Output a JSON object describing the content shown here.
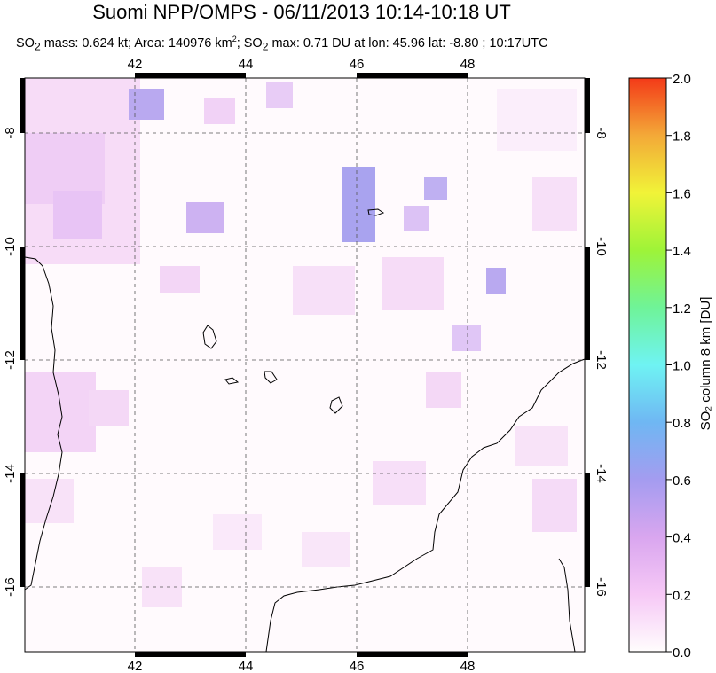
{
  "header": {
    "title": "Suomi NPP/OMPS - 06/11/2013 10:14-10:18 UT",
    "subtitle_pre": "SO",
    "subtitle_sub": "2",
    "subtitle_mass": " mass: 0.624 kt; Area: 140976 km",
    "subtitle_sup": "2",
    "subtitle_rest": "; SO",
    "subtitle_sub2": "2",
    "subtitle_tail": " max: 0.71 DU at lon: 45.96 lat: -8.80 ; 10:17UTC"
  },
  "map": {
    "lon_ticks": [
      "42",
      "44",
      "46",
      "48"
    ],
    "lat_ticks": [
      "-8",
      "-10",
      "-12",
      "-14",
      "-16"
    ],
    "colors": {
      "frame": "#000000",
      "grid": "#555555",
      "coast": "#000000"
    }
  },
  "colorbar": {
    "label": "SO₂ column 8 km [DU]",
    "ticks": [
      "2.0",
      "1.8",
      "1.6",
      "1.4",
      "1.2",
      "1.0",
      "0.8",
      "0.6",
      "0.4",
      "0.2",
      "0.0"
    ],
    "colors": [
      "#fffdfd",
      "#f6c8f6",
      "#d9a6ef",
      "#a49cf0",
      "#6fb7f3",
      "#6ff3f3",
      "#6ff398",
      "#9ef338",
      "#f1f338",
      "#f3a938",
      "#f33a18"
    ]
  }
}
